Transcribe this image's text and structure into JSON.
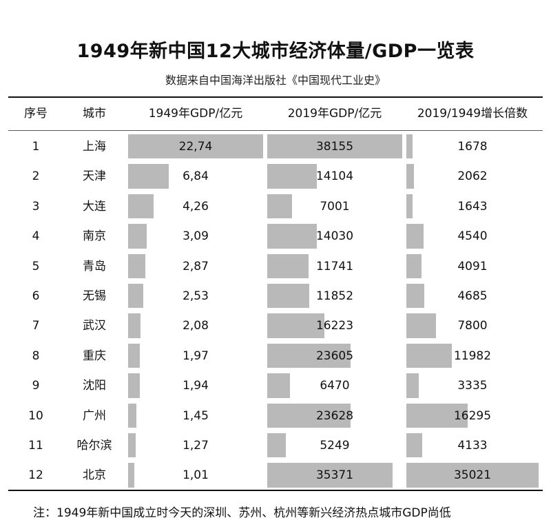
{
  "title": "1949年新中国12大城市经济体量/GDP一览表",
  "subtitle": "数据来自中国海洋出版社《中国现代工业史》",
  "headers": [
    "序号",
    "城市",
    "1949年GDP/亿元",
    "2019年GDP/亿元",
    "2019/1949增长倍数"
  ],
  "rows": [
    {
      "no": "1",
      "city": "上海",
      "gdp1949": "22,74",
      "gdp2019": "38155",
      "growth": "1678"
    },
    {
      "no": "2",
      "city": "天津",
      "gdp1949": "6,84",
      "gdp2019": "14104",
      "growth": "2062"
    },
    {
      "no": "3",
      "city": "大连",
      "gdp1949": "4,26",
      "gdp2019": "7001",
      "growth": "1643"
    },
    {
      "no": "4",
      "city": "南京",
      "gdp1949": "3,09",
      "gdp2019": "14030",
      "growth": "4540"
    },
    {
      "no": "5",
      "city": "青岛",
      "gdp1949": "2,87",
      "gdp2019": "11741",
      "growth": "4091"
    },
    {
      "no": "6",
      "city": "无锡",
      "gdp1949": "2,53",
      "gdp2019": "11852",
      "growth": "4685"
    },
    {
      "no": "7",
      "city": "武汉",
      "gdp1949": "2,08",
      "gdp2019": "16223",
      "growth": "7800"
    },
    {
      "no": "8",
      "city": "重庆",
      "gdp1949": "1,97",
      "gdp2019": "23605",
      "growth": "11982"
    },
    {
      "no": "9",
      "city": "沈阳",
      "gdp1949": "1,94",
      "gdp2019": "6470",
      "growth": "3335"
    },
    {
      "no": "10",
      "city": "广州",
      "gdp1949": "1,45",
      "gdp2019": "23628",
      "growth": "16295"
    },
    {
      "no": "11",
      "city": "哈尔滨",
      "gdp1949": "1,27",
      "gdp2019": "5249",
      "growth": "4133"
    },
    {
      "no": "12",
      "city": "北京",
      "gdp1949": "1,01",
      "gdp2019": "35371",
      "growth": "35021"
    }
  ],
  "bar_color": "#b9b9b9",
  "note": "注：1949年新中国成立时今天的深圳、苏州、杭州等新兴经济热点城市GDP尚低"
}
